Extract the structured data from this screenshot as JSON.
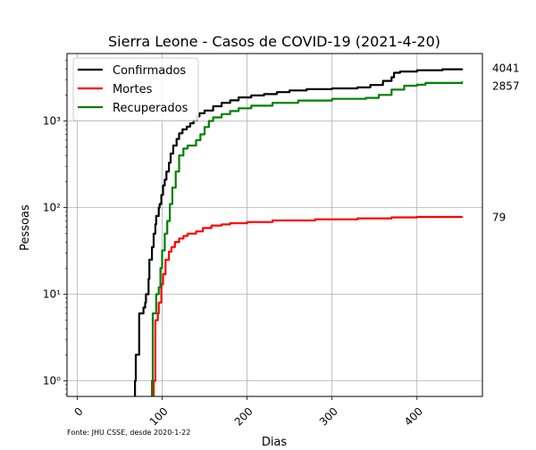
{
  "chart_data": {
    "type": "line",
    "title": "Sierra Leone - Casos de COVID-19 (2021-4-20)",
    "xlabel": "Dias",
    "ylabel": "Pessoas",
    "y_scale": "log",
    "xlim": [
      -12,
      477
    ],
    "ylim": [
      0.66,
      6000
    ],
    "x_ticks": [
      0,
      100,
      200,
      300,
      400
    ],
    "x_tick_labels": [
      "0",
      "100",
      "200",
      "300",
      "400"
    ],
    "y_ticks": [
      1,
      10,
      100,
      1000
    ],
    "y_tick_labels": [
      "10⁰",
      "10¹",
      "10²",
      "10³"
    ],
    "grid": true,
    "legend_position": "top-left",
    "footnote": "Fonte: JHU CSSE, desde 2020-1-22",
    "series": [
      {
        "name": "Confirmados",
        "color": "#000000",
        "final_label": "4041",
        "points": [
          [
            68,
            1
          ],
          [
            69,
            2
          ],
          [
            72,
            2
          ],
          [
            73,
            6
          ],
          [
            76,
            6
          ],
          [
            78,
            7
          ],
          [
            80,
            8
          ],
          [
            81,
            10
          ],
          [
            84,
            15
          ],
          [
            85,
            25
          ],
          [
            88,
            35
          ],
          [
            90,
            50
          ],
          [
            92,
            64
          ],
          [
            93,
            80
          ],
          [
            96,
            100
          ],
          [
            97,
            110
          ],
          [
            99,
            140
          ],
          [
            101,
            180
          ],
          [
            103,
            210
          ],
          [
            105,
            260
          ],
          [
            108,
            330
          ],
          [
            110,
            420
          ],
          [
            113,
            520
          ],
          [
            117,
            620
          ],
          [
            120,
            720
          ],
          [
            124,
            800
          ],
          [
            129,
            860
          ],
          [
            133,
            940
          ],
          [
            137,
            1020
          ],
          [
            141,
            1130
          ],
          [
            144,
            1230
          ],
          [
            150,
            1320
          ],
          [
            160,
            1480
          ],
          [
            170,
            1620
          ],
          [
            180,
            1730
          ],
          [
            190,
            1870
          ],
          [
            205,
            1970
          ],
          [
            220,
            2040
          ],
          [
            235,
            2150
          ],
          [
            250,
            2250
          ],
          [
            270,
            2330
          ],
          [
            300,
            2380
          ],
          [
            330,
            2440
          ],
          [
            345,
            2600
          ],
          [
            360,
            2900
          ],
          [
            370,
            3200
          ],
          [
            373,
            3600
          ],
          [
            380,
            3720
          ],
          [
            400,
            3850
          ],
          [
            430,
            3950
          ],
          [
            453,
            4041
          ]
        ]
      },
      {
        "name": "Mortes",
        "color": "#ff0000",
        "final_label": "79",
        "points": [
          [
            90,
            1
          ],
          [
            92,
            5
          ],
          [
            95,
            6
          ],
          [
            96,
            8
          ],
          [
            99,
            13
          ],
          [
            101,
            17
          ],
          [
            104,
            25
          ],
          [
            108,
            31
          ],
          [
            111,
            35
          ],
          [
            115,
            40
          ],
          [
            120,
            44
          ],
          [
            125,
            47
          ],
          [
            130,
            50
          ],
          [
            140,
            53
          ],
          [
            148,
            58
          ],
          [
            158,
            62
          ],
          [
            170,
            64
          ],
          [
            180,
            66
          ],
          [
            200,
            68
          ],
          [
            230,
            71
          ],
          [
            280,
            73
          ],
          [
            330,
            75
          ],
          [
            370,
            77
          ],
          [
            400,
            78
          ],
          [
            453,
            79
          ]
        ]
      },
      {
        "name": "Recuperados",
        "color": "#008000",
        "final_label": "2857",
        "points": [
          [
            88,
            1
          ],
          [
            89,
            6
          ],
          [
            92,
            6
          ],
          [
            93,
            10
          ],
          [
            96,
            12
          ],
          [
            98,
            20
          ],
          [
            100,
            32
          ],
          [
            103,
            50
          ],
          [
            106,
            70
          ],
          [
            109,
            110
          ],
          [
            112,
            170
          ],
          [
            116,
            260
          ],
          [
            120,
            400
          ],
          [
            125,
            480
          ],
          [
            130,
            520
          ],
          [
            140,
            600
          ],
          [
            145,
            700
          ],
          [
            150,
            850
          ],
          [
            155,
            1000
          ],
          [
            160,
            1100
          ],
          [
            170,
            1200
          ],
          [
            180,
            1300
          ],
          [
            190,
            1400
          ],
          [
            205,
            1500
          ],
          [
            230,
            1620
          ],
          [
            260,
            1720
          ],
          [
            300,
            1800
          ],
          [
            340,
            1850
          ],
          [
            355,
            2000
          ],
          [
            370,
            2300
          ],
          [
            385,
            2550
          ],
          [
            400,
            2620
          ],
          [
            410,
            2750
          ],
          [
            453,
            2857
          ]
        ]
      }
    ]
  }
}
